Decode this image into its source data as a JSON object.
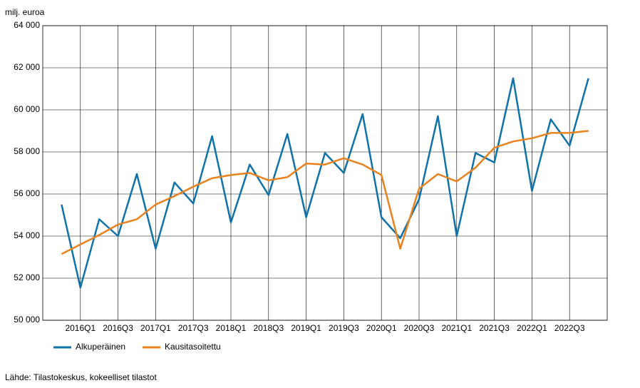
{
  "chart_data": {
    "type": "line",
    "y_label": "milj. euroa",
    "source": "Lähde: Tilastokeskus, kokeelliset tilastot",
    "categories": [
      null,
      "2016Q1",
      null,
      "2016Q3",
      null,
      "2017Q1",
      null,
      "2017Q3",
      null,
      "2018Q1",
      null,
      "2018Q3",
      null,
      "2019Q1",
      null,
      "2019Q3",
      null,
      "2020Q1",
      null,
      "2020Q3",
      null,
      "2021Q1",
      null,
      "2021Q3",
      null,
      "2022Q1",
      null,
      "2022Q3",
      null
    ],
    "series": [
      {
        "name": "Alkuperäinen",
        "color": "#0f72a8",
        "values": [
          55500,
          51550,
          54800,
          54000,
          56950,
          53400,
          56550,
          55550,
          58750,
          54650,
          57400,
          55950,
          58850,
          54900,
          57950,
          57000,
          59800,
          54900,
          53900,
          55750,
          59700,
          54000,
          57950,
          57500,
          61500,
          56150,
          59550,
          58300,
          61500
        ]
      },
      {
        "name": "Kausitasoitettu",
        "color": "#e8821e",
        "values": [
          53150,
          53600,
          54050,
          54550,
          54800,
          55500,
          55900,
          56350,
          56750,
          56900,
          57000,
          56650,
          56800,
          57450,
          57400,
          57700,
          57400,
          56900,
          53400,
          56250,
          56950,
          56600,
          57250,
          58200,
          58500,
          58650,
          58900,
          58900,
          59000
        ]
      }
    ],
    "ylim": [
      50000,
      64000
    ],
    "yticks": [
      {
        "value": 50000,
        "label": "50 000"
      },
      {
        "value": 52000,
        "label": "52 000"
      },
      {
        "value": 54000,
        "label": "54 000"
      },
      {
        "value": 56000,
        "label": "56 000"
      },
      {
        "value": 58000,
        "label": "58 000"
      },
      {
        "value": 60000,
        "label": "60 000"
      },
      {
        "value": 62000,
        "label": "62 000"
      },
      {
        "value": 64000,
        "label": "64 000"
      }
    ],
    "grid": true,
    "legend": "bottom"
  }
}
